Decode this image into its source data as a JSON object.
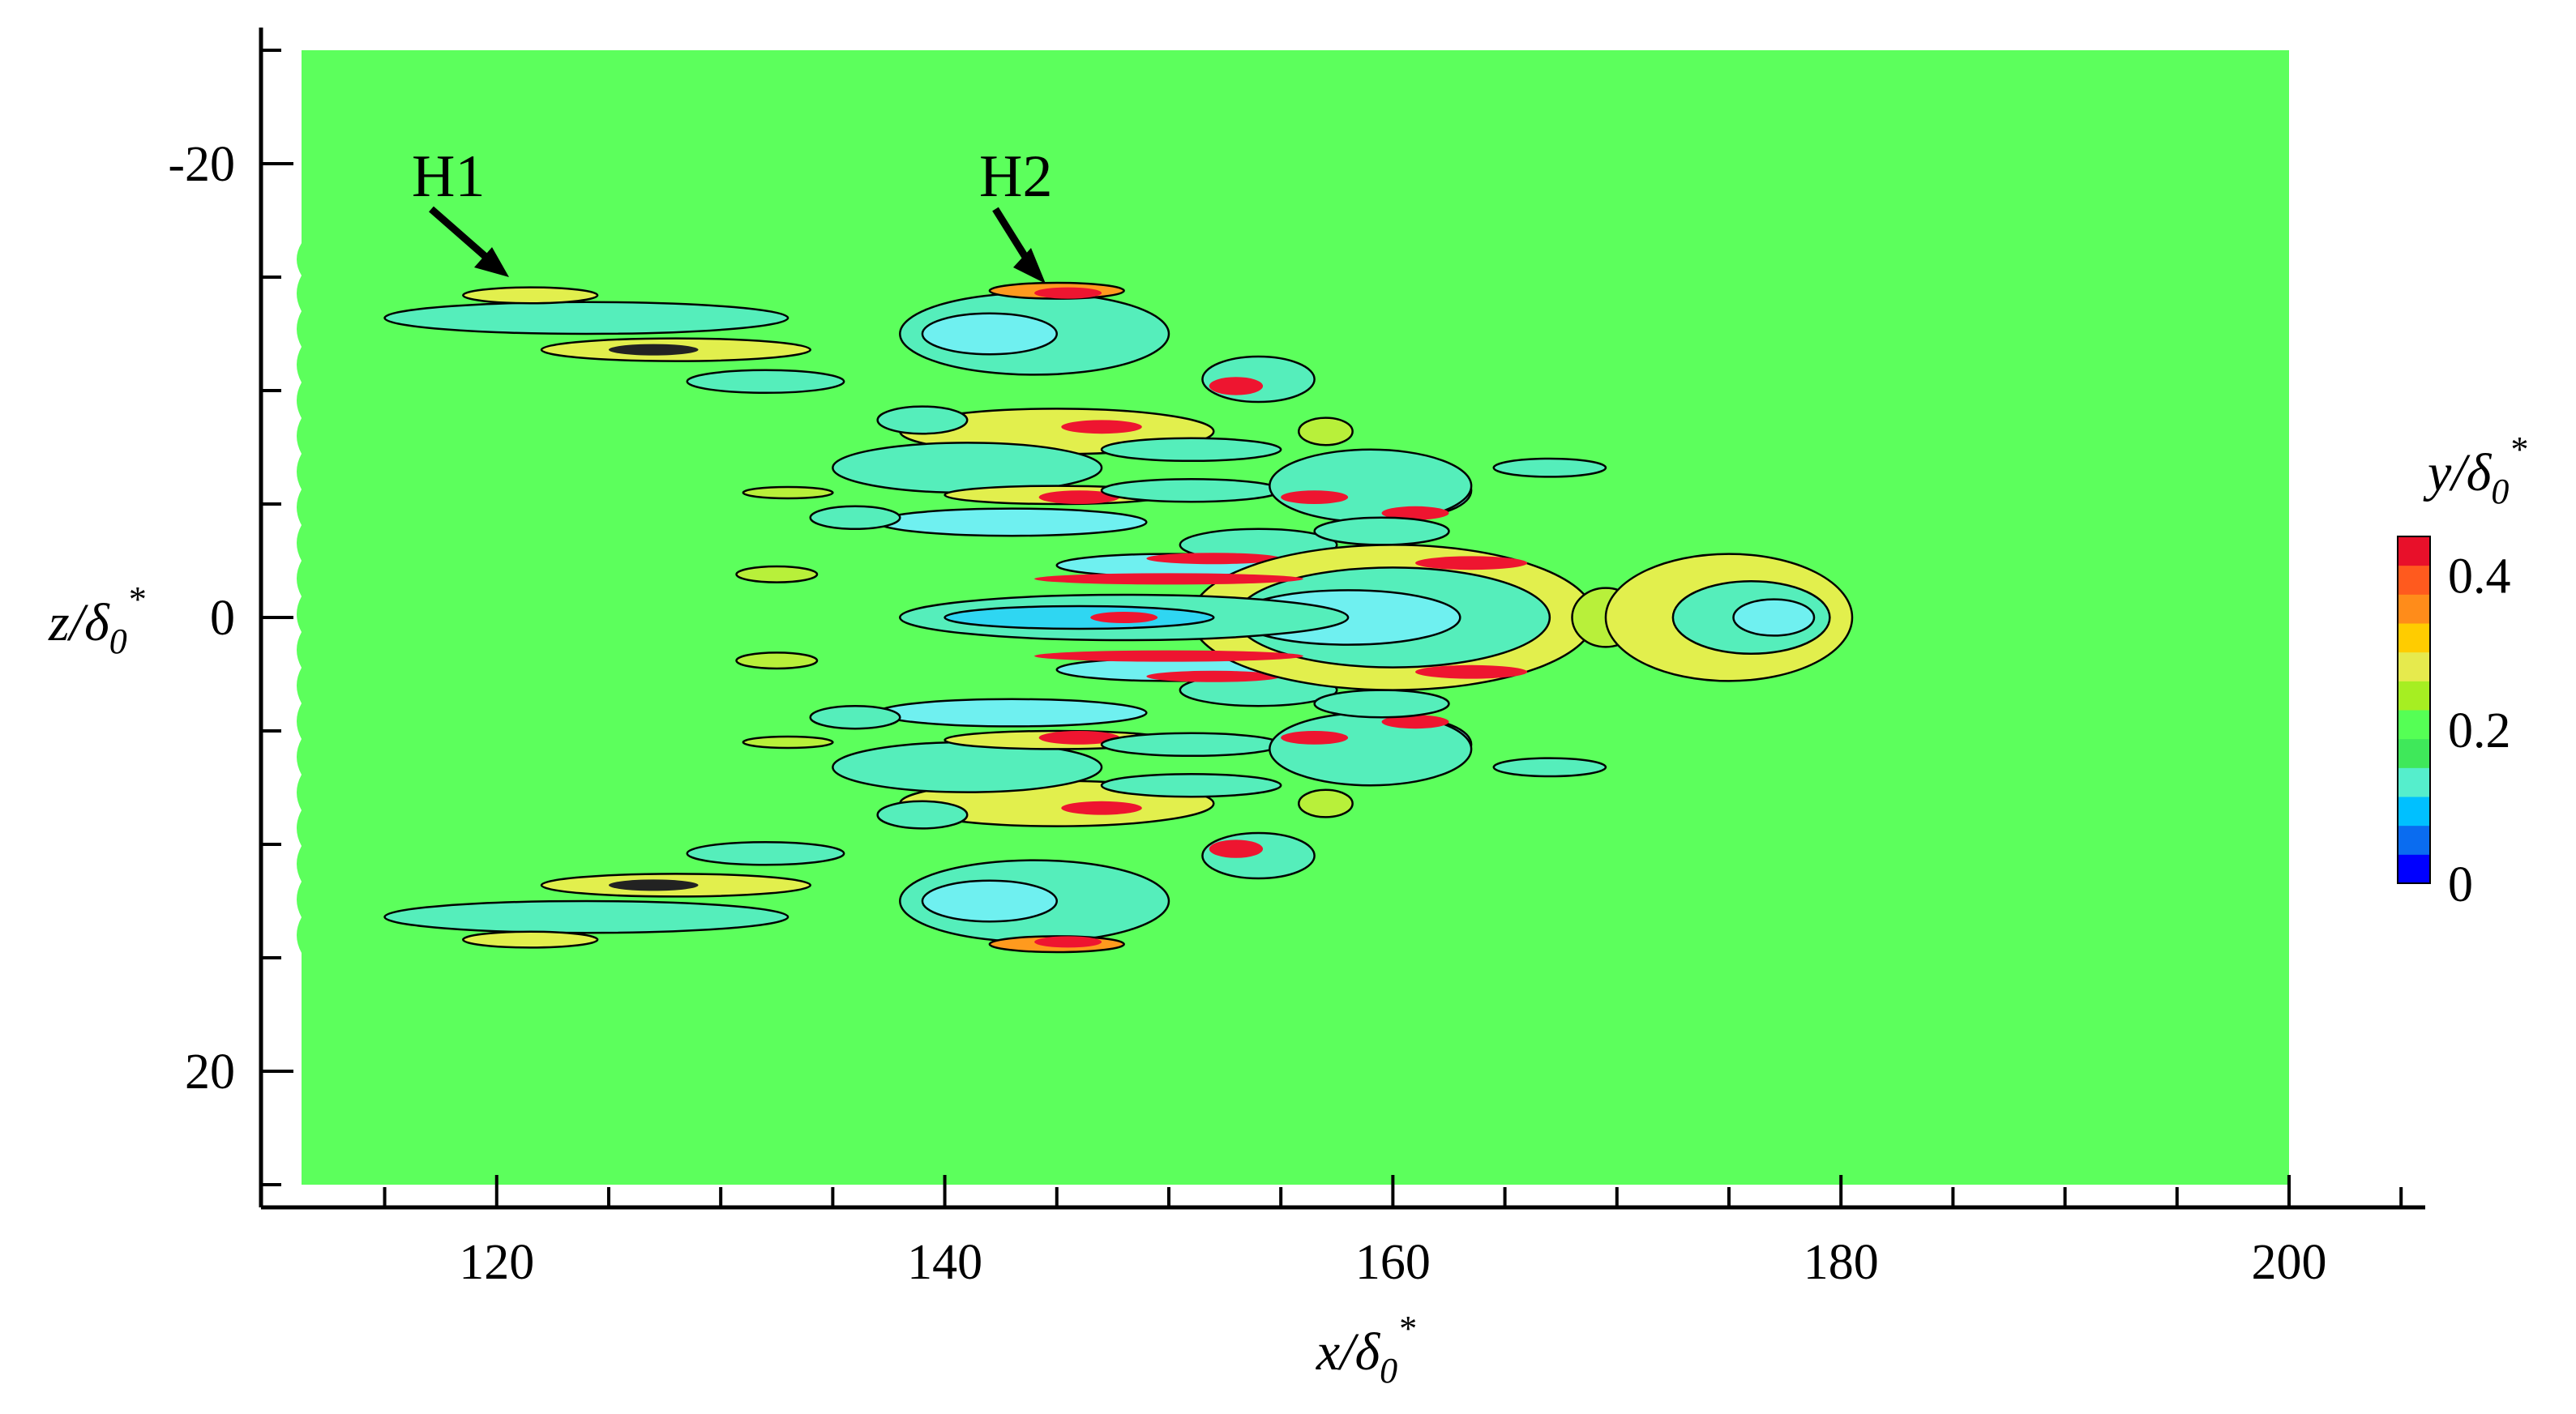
{
  "chart_data": {
    "type": "heatmap",
    "title": "",
    "xlabel": {
      "main": "x/δ",
      "sub": "0",
      "sup": "*"
    },
    "ylabel": {
      "main": "z/δ",
      "sub": "0",
      "sup": "*"
    },
    "xlim": [
      111,
      200
    ],
    "ylim": [
      -25,
      25
    ],
    "y_axis_inverted": true,
    "x_ticks": [
      "120",
      "140",
      "160",
      "180",
      "200"
    ],
    "y_ticks": [
      "-20",
      "0",
      "20"
    ],
    "colorbar": {
      "title": {
        "main": "y/δ",
        "sub": "0",
        "sup": "*"
      },
      "range": [
        0,
        0.45
      ],
      "tick_labels": [
        "0",
        "0.2",
        "0.4"
      ],
      "colors": [
        "#0000ff",
        "#0a6cf0",
        "#00c0ff",
        "#55eecc",
        "#3fe85a",
        "#55ff55",
        "#a6ee22",
        "#e6ea4d",
        "#ffcc00",
        "#ff8c1a",
        "#ff5a1e",
        "#e8102a"
      ],
      "background_level_color": "#5cff5c"
    },
    "annotations": [
      {
        "text": "H1",
        "points_to": [
          121,
          -15
        ]
      },
      {
        "text": "H2",
        "points_to": [
          145,
          -14
        ]
      }
    ],
    "features": [
      {
        "x": [
          116,
          132
        ],
        "z": -13,
        "level": "cyan-green",
        "desc": "streak"
      },
      {
        "x": [
          116,
          132
        ],
        "z": 13,
        "level": "cyan-green",
        "desc": "streak"
      },
      {
        "x": [
          137,
          168
        ],
        "z_range": [
          -15,
          15
        ],
        "level": "mixed",
        "desc": "turbulent spot core"
      },
      {
        "x": [
          170,
          179
        ],
        "z": 0,
        "level": "yellow-cyan",
        "desc": "spot tail"
      }
    ]
  }
}
